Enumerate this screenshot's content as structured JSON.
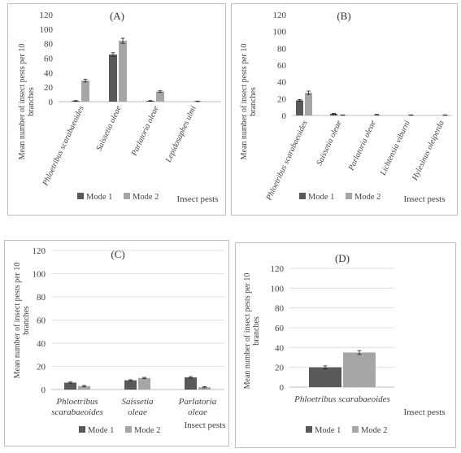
{
  "colors": {
    "mode1": "#595959",
    "mode2": "#a6a6a6",
    "grid": "#d9d9d9",
    "axis": "#bfbfbf",
    "text": "#404040"
  },
  "chart_data": [
    {
      "type": "bar",
      "panel_label": "(A)",
      "ylabel": "Mean number of insect pests per 10 branches",
      "xlabel": "Insect pests",
      "ylim": [
        0,
        120
      ],
      "yticks": [
        0,
        20,
        40,
        60,
        80,
        100,
        120
      ],
      "grid": false,
      "legend": "bottom",
      "categories": [
        "Phloetribus scarabaeoides",
        "Saissetia oleae",
        "Parlatoria oleae",
        "Lepidosaphes ulmi"
      ],
      "series": [
        {
          "name": "Mode 1",
          "values": [
            1,
            65,
            1,
            0
          ],
          "errors": [
            0.5,
            2.5,
            0.5,
            0
          ]
        },
        {
          "name": "Mode 2",
          "values": [
            29,
            84,
            14,
            0.5
          ],
          "errors": [
            2,
            3.5,
            1,
            0.3
          ]
        }
      ]
    },
    {
      "type": "bar",
      "panel_label": "(B)",
      "ylabel": "Mean number of insect pests per 10 branches",
      "xlabel": "Insect pests",
      "ylim": [
        0,
        120
      ],
      "yticks": [
        0,
        20,
        40,
        60,
        80,
        100,
        120
      ],
      "grid": false,
      "legend": "bottom",
      "categories": [
        "Phloetribus scarabaeoides",
        "Saissetia oleae",
        "Parlatoria oleae",
        "Lichtensia viburni",
        "Hylesinus oleiperda"
      ],
      "series": [
        {
          "name": "Mode 1",
          "values": [
            18,
            2,
            0,
            0,
            0
          ],
          "errors": [
            1,
            0.5,
            0,
            0,
            0
          ]
        },
        {
          "name": "Mode 2",
          "values": [
            27,
            0.5,
            1,
            0.5,
            0.5
          ],
          "errors": [
            2,
            0.2,
            0.3,
            0.2,
            0.2
          ]
        }
      ]
    },
    {
      "type": "bar",
      "panel_label": "(C)",
      "ylabel": "Mean number of insect pests per 10 branches",
      "xlabel": "Insect pests",
      "ylim": [
        0,
        120
      ],
      "yticks": [
        0,
        20,
        40,
        60,
        80,
        100,
        120
      ],
      "grid": true,
      "legend": "bottom",
      "categories": [
        "Phloetribus scarabaeoides",
        "Saissetia oleae",
        "Parlatoria oleae"
      ],
      "series": [
        {
          "name": "Mode 1",
          "values": [
            6,
            8,
            10.5
          ],
          "errors": [
            0.5,
            0.5,
            0.7
          ]
        },
        {
          "name": "Mode 2",
          "values": [
            3,
            10,
            2
          ],
          "errors": [
            0.5,
            0.5,
            0.5
          ]
        }
      ]
    },
    {
      "type": "bar",
      "panel_label": "(D)",
      "ylabel": "Mean number of insect pests per 10 branches",
      "xlabel": "Insect pests",
      "ylim": [
        0,
        120
      ],
      "yticks": [
        0,
        20,
        40,
        60,
        80,
        100,
        120
      ],
      "grid": true,
      "legend": "bottom",
      "categories": [
        "Phloetribus scarabaeoides"
      ],
      "series": [
        {
          "name": "Mode 1",
          "values": [
            20
          ],
          "errors": [
            1.5
          ]
        },
        {
          "name": "Mode 2",
          "values": [
            35
          ],
          "errors": [
            2
          ]
        }
      ]
    }
  ]
}
